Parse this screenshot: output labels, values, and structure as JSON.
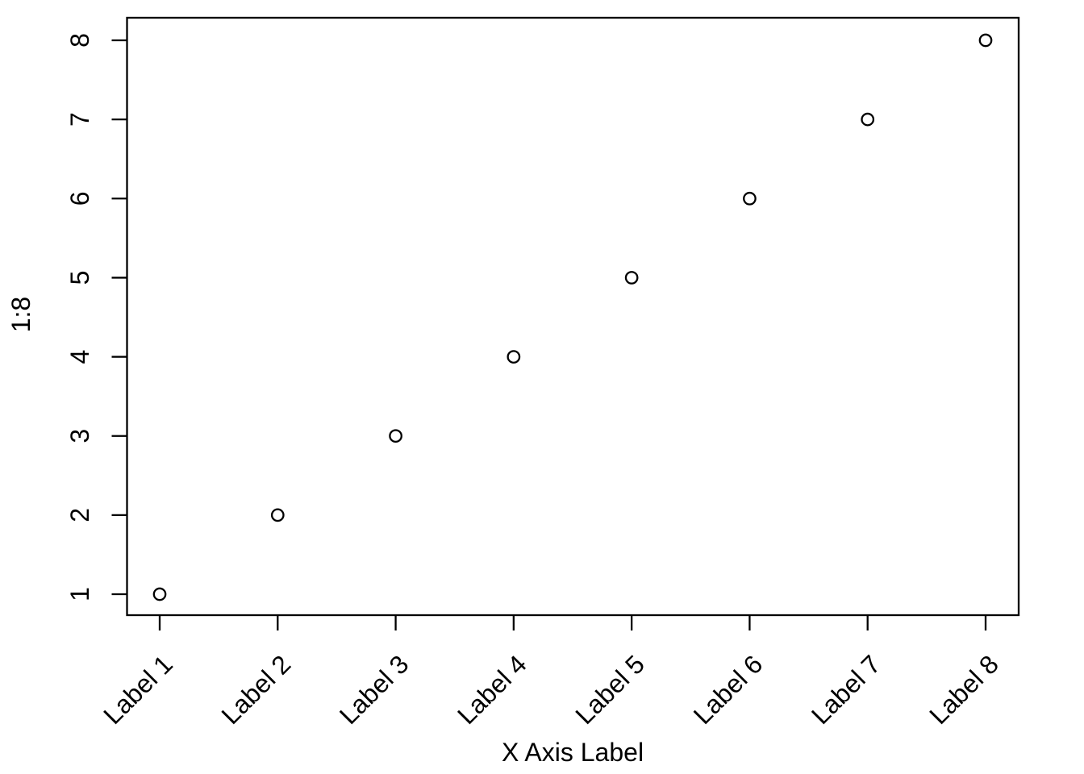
{
  "figure": {
    "background_color": "#ffffff",
    "line_color": "#000000"
  },
  "chart_data": {
    "type": "scatter",
    "title": "",
    "xlabel": "X Axis Label",
    "ylabel": "1:8",
    "categories": [
      "Label 1",
      "Label 2",
      "Label 3",
      "Label 4",
      "Label 5",
      "Label 6",
      "Label 7",
      "Label 8"
    ],
    "x": [
      1,
      2,
      3,
      4,
      5,
      6,
      7,
      8
    ],
    "values": [
      1,
      2,
      3,
      4,
      5,
      6,
      7,
      8
    ],
    "yticks": [
      "1",
      "2",
      "3",
      "4",
      "5",
      "6",
      "7",
      "8"
    ],
    "xlim": [
      1,
      8
    ],
    "ylim": [
      1,
      8
    ],
    "marker": "open-circle",
    "point_color": "#000000",
    "x_tick_label_rotation_deg": 45,
    "grid": false,
    "legend_position": "none"
  }
}
